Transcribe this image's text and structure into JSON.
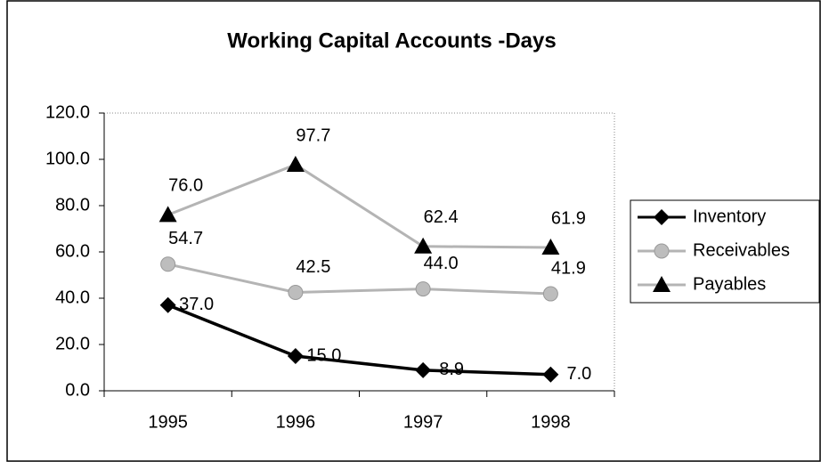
{
  "chart_data": {
    "type": "line",
    "title": "Working Capital Accounts -Days",
    "categories": [
      "1995",
      "1996",
      "1997",
      "1998"
    ],
    "series": [
      {
        "name": "Inventory",
        "color": "#000000",
        "marker": "diamond",
        "marker_color": "#000000",
        "values": [
          37,
          15,
          8.9,
          7
        ],
        "value_labels": [
          "37.0",
          "15.0",
          "8.9",
          "7.0"
        ]
      },
      {
        "name": "Receivables",
        "color": "#b4b4b4",
        "marker": "circle",
        "marker_color": "#bdbdbd",
        "values": [
          54.7,
          42.5,
          44,
          41.9
        ],
        "value_labels": [
          "54.7",
          "42.5",
          "44.0",
          "41.9"
        ]
      },
      {
        "name": "Payables",
        "color": "#b4b4b4",
        "marker": "triangle",
        "marker_color": "#000000",
        "values": [
          76,
          97.7,
          62.4,
          61.9
        ],
        "value_labels": [
          "76.0",
          "97.7",
          "62.4",
          "61.9"
        ]
      }
    ],
    "ylim": [
      0,
      120
    ],
    "yticks": [
      {
        "value": 0,
        "label": "0.0"
      },
      {
        "value": 20,
        "label": "20.0"
      },
      {
        "value": 40,
        "label": "40.0"
      },
      {
        "value": 60,
        "label": "60.0"
      },
      {
        "value": 80,
        "label": "80.0"
      },
      {
        "value": 100,
        "label": "100.0"
      },
      {
        "value": 120,
        "label": "120.0"
      }
    ],
    "grid": false,
    "legend": "right"
  }
}
